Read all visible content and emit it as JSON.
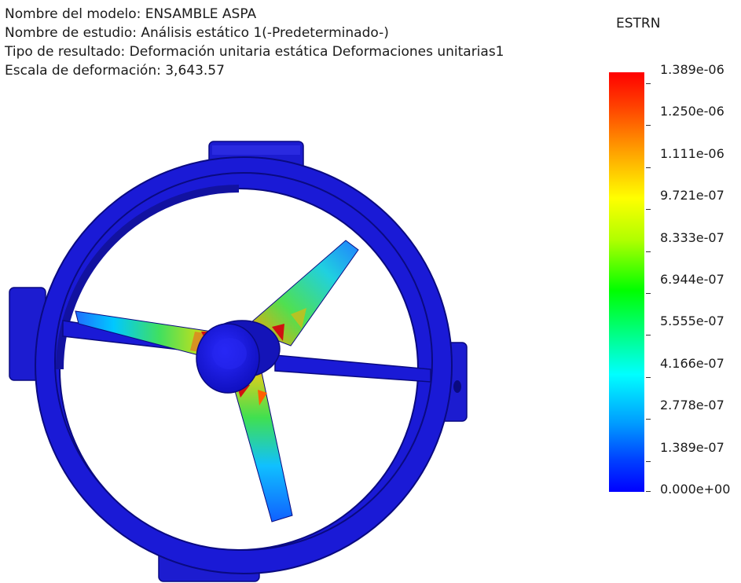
{
  "info": {
    "model_name": "Nombre del modelo: ENSAMBLE ASPA",
    "study_name": "Nombre de estudio: Análisis estático 1(-Predeterminado-)",
    "result_type": "Tipo de resultado: Deformación unitaria estática Deformaciones unitarias1",
    "deformation_scale": "Escala de deformación: 3,643.57"
  },
  "legend": {
    "title": "ESTRN",
    "labels": [
      "1.389e-06",
      "1.250e-06",
      "1.111e-06",
      "9.721e-07",
      "8.333e-07",
      "6.944e-07",
      "5.555e-07",
      "4.166e-07",
      "2.778e-07",
      "1.389e-07",
      "0.000e+00"
    ],
    "colors": {
      "max": "#ff0000",
      "mid_high": "#ffff00",
      "mid": "#00ff00",
      "mid_low": "#00ffff",
      "min": "#0000ff"
    }
  },
  "model": {
    "component": "ENSAMBLE ASPA",
    "frame_color": "#1a1ad6",
    "frame_dark": "#0a0a8a"
  }
}
